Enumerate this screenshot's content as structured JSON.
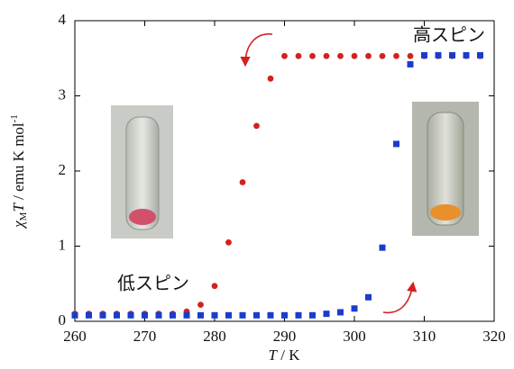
{
  "chart_data": {
    "type": "scatter",
    "x_label": [
      "T",
      " / K"
    ],
    "y_label": [
      "χ",
      "M",
      "T",
      " / emu K mol",
      "-1"
    ],
    "x": [
      260,
      262,
      264,
      266,
      268,
      270,
      272,
      274,
      276,
      278,
      280,
      282,
      284,
      286,
      288,
      290,
      292,
      294,
      296,
      298,
      300,
      302,
      304,
      306,
      308,
      310,
      312,
      314,
      316,
      318
    ],
    "series": [
      {
        "color": "#d42020",
        "marker": "circle",
        "values": [
          0.1,
          0.1,
          0.1,
          0.1,
          0.1,
          0.1,
          0.1,
          0.1,
          0.13,
          0.22,
          0.47,
          1.05,
          1.85,
          2.6,
          3.23,
          3.53,
          3.53,
          3.53,
          3.53,
          3.53,
          3.53,
          3.53,
          3.53,
          3.53,
          3.53,
          3.53,
          3.53,
          3.53,
          3.53,
          3.53
        ]
      },
      {
        "color": "#1a3ccc",
        "marker": "square",
        "values": [
          0.08,
          0.08,
          0.08,
          0.08,
          0.08,
          0.08,
          0.08,
          0.08,
          0.08,
          0.08,
          0.08,
          0.08,
          0.08,
          0.08,
          0.08,
          0.08,
          0.08,
          0.08,
          0.1,
          0.12,
          0.17,
          0.32,
          0.98,
          2.36,
          3.42,
          3.54,
          3.54,
          3.54,
          3.54,
          3.54
        ]
      }
    ],
    "xlim": [
      260,
      320
    ],
    "xticks": [
      260,
      270,
      280,
      290,
      300,
      310,
      320
    ],
    "ylim": [
      0,
      4
    ],
    "yticks": [
      0,
      1,
      2,
      3,
      4
    ],
    "grid": false,
    "annotations": [
      "高スピン",
      "低スピン"
    ]
  }
}
